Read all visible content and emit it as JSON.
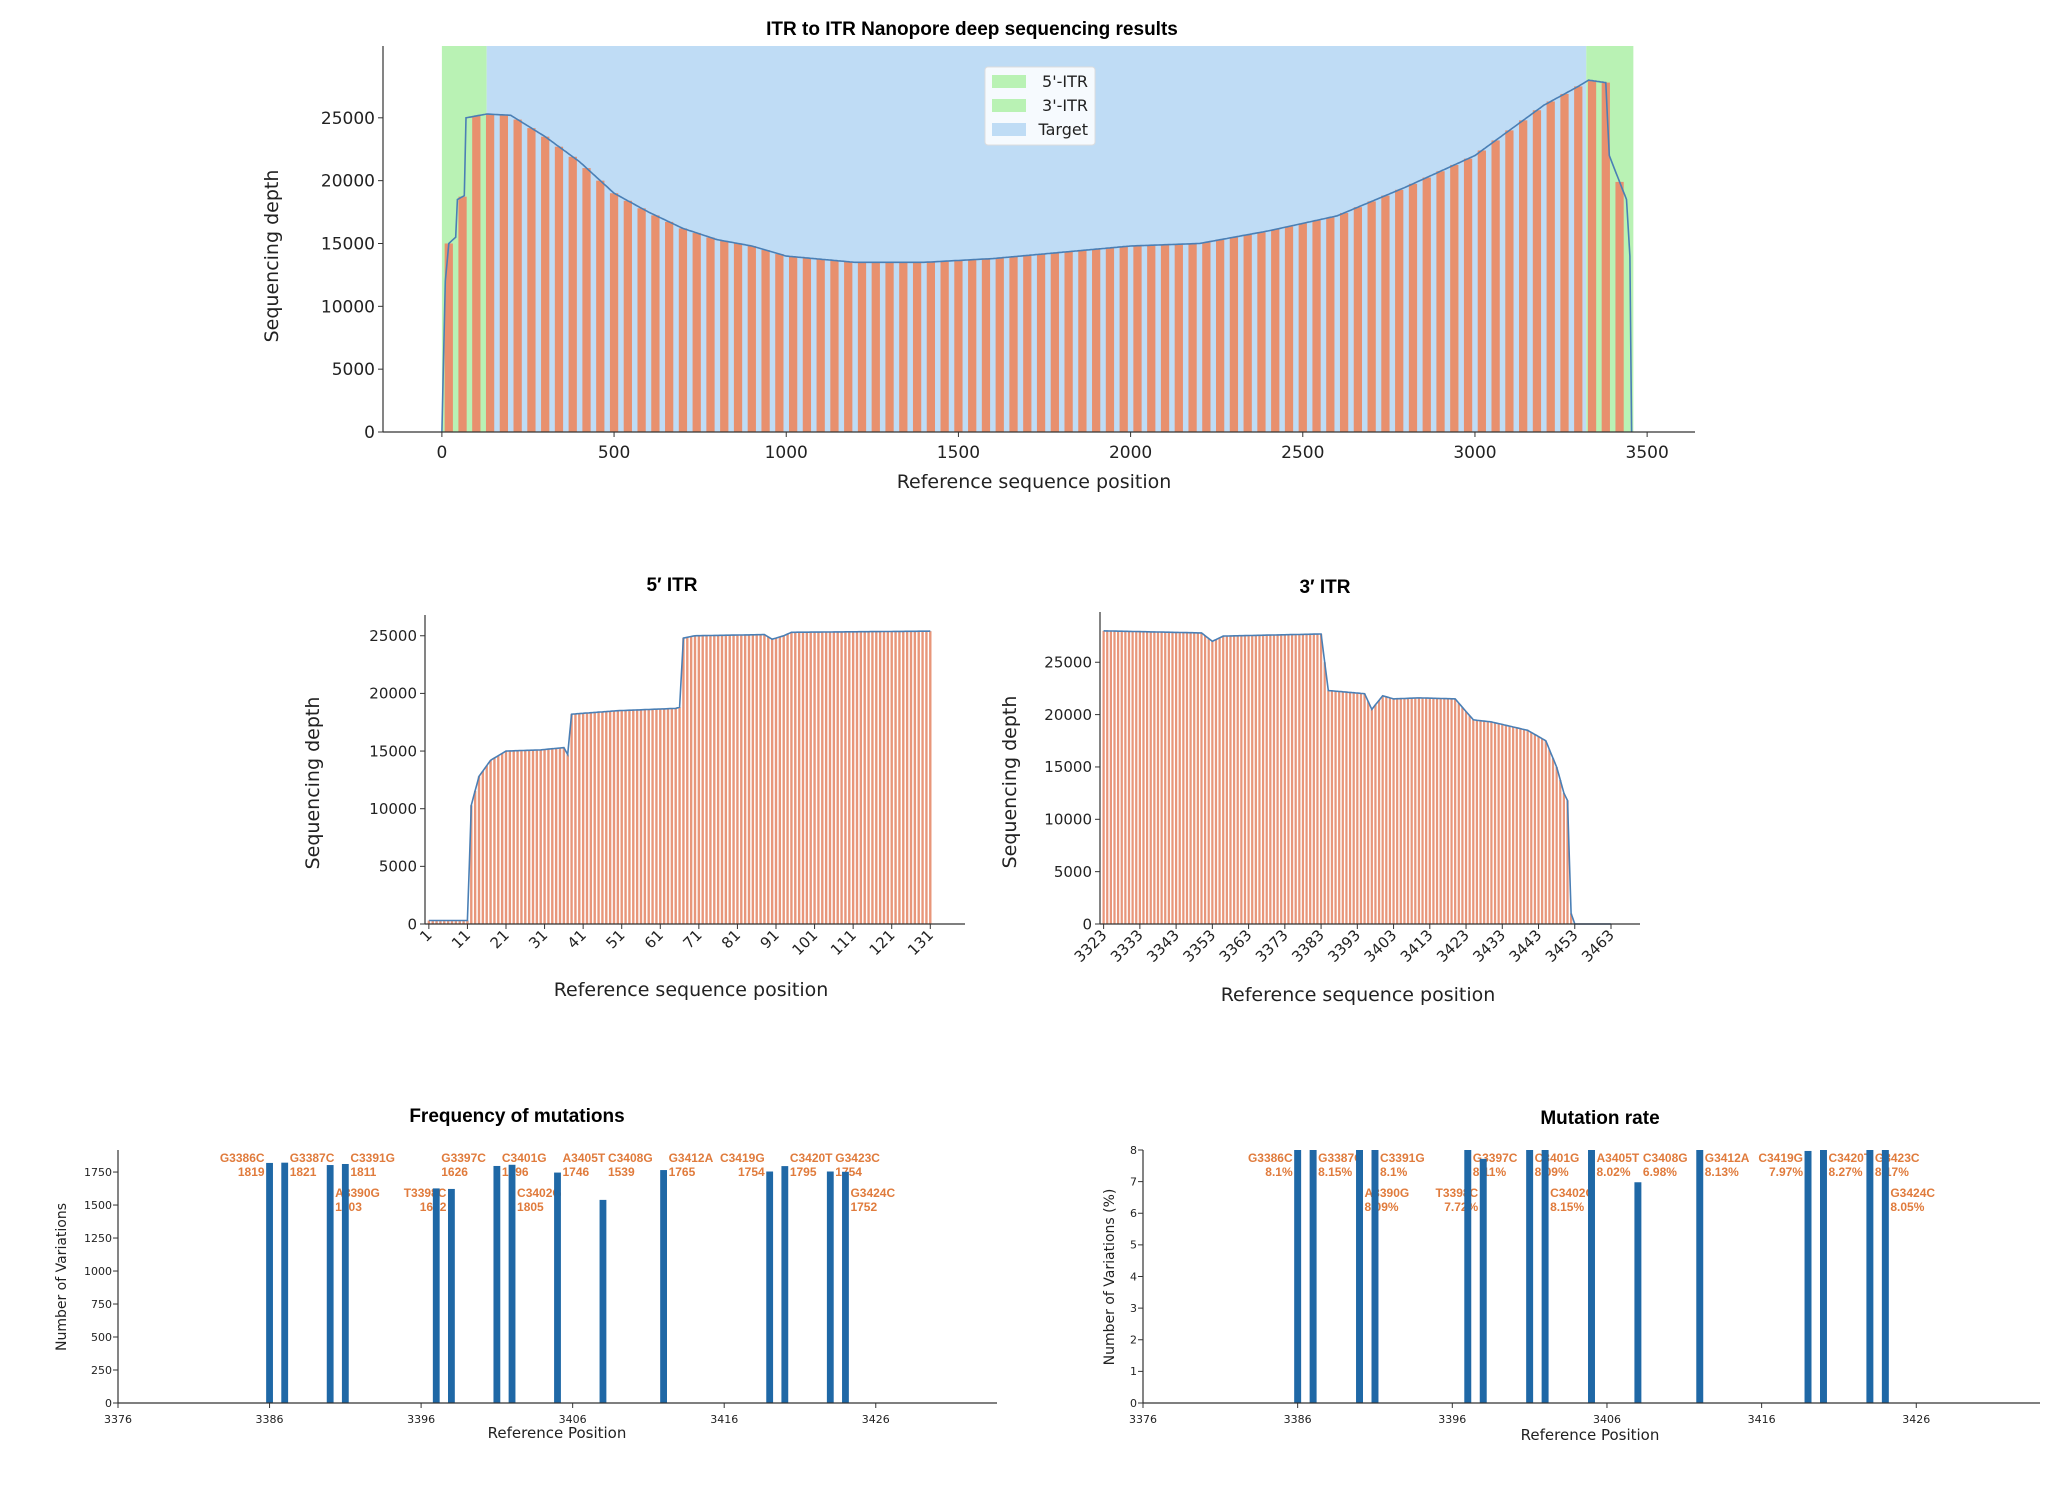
{
  "chart_data": [
    {
      "type": "bar",
      "title": "ITR to ITR Nanopore deep sequencing results",
      "xlabel": "Reference sequence position",
      "ylabel": "Sequencing depth",
      "xlim": [
        -171,
        3639
      ],
      "ylim": [
        0,
        29600
      ],
      "xticks": [
        0,
        500,
        1000,
        1500,
        2000,
        2500,
        3000,
        3500
      ],
      "yticks": [
        0,
        5000,
        10000,
        15000,
        20000,
        25000
      ],
      "grid": false,
      "legend_position": "top-center",
      "regions": [
        {
          "name": "5'-ITR",
          "start": 0,
          "end": 130,
          "color": "#b9f2b4"
        },
        {
          "name": "3'-ITR",
          "start": 3323,
          "end": 3460,
          "color": "#b9f2b4"
        },
        {
          "name": "Target",
          "start": 130,
          "end": 3323,
          "color": "#bfdcf5"
        }
      ],
      "bar_color": "#e8906e",
      "line_color": "#4a7fb5",
      "depth_profile": {
        "x": [
          0,
          10,
          20,
          40,
          45,
          65,
          70,
          130,
          200,
          300,
          400,
          500,
          600,
          700,
          800,
          900,
          1000,
          1200,
          1400,
          1600,
          1800,
          2000,
          2200,
          2400,
          2600,
          2800,
          3000,
          3200,
          3300,
          3330,
          3380,
          3390,
          3440,
          3450,
          3455
        ],
        "y": [
          0,
          12000,
          15000,
          15500,
          18500,
          18800,
          25000,
          25300,
          25200,
          23500,
          21500,
          19000,
          17500,
          16200,
          15300,
          14800,
          14000,
          13500,
          13500,
          13800,
          14300,
          14800,
          15000,
          16000,
          17200,
          19500,
          22000,
          26000,
          27500,
          28000,
          27800,
          22000,
          18500,
          14000,
          0
        ]
      }
    },
    {
      "type": "bar",
      "title": "5′ ITR",
      "xlabel": "Reference sequence position",
      "ylabel": "Sequencing depth",
      "xlim": [
        0,
        140
      ],
      "ylim": [
        0,
        26800
      ],
      "xticks": [
        1,
        11,
        21,
        31,
        41,
        51,
        61,
        71,
        81,
        91,
        101,
        111,
        121,
        131
      ],
      "yticks": [
        0,
        5000,
        10000,
        15000,
        20000,
        25000
      ],
      "bar_color": "#e8967a",
      "line_color": "#4a7fb5",
      "depth_profile": {
        "x": [
          1,
          11,
          12,
          14,
          17,
          21,
          30,
          36,
          37,
          38,
          50,
          65,
          66,
          67,
          70,
          88,
          90,
          93,
          95,
          131
        ],
        "y": [
          300,
          300,
          10300,
          12800,
          14200,
          15000,
          15100,
          15300,
          14700,
          18200,
          18500,
          18700,
          18800,
          24800,
          25000,
          25100,
          24700,
          25000,
          25300,
          25400
        ]
      }
    },
    {
      "type": "bar",
      "title": "3′ ITR",
      "xlabel": "Reference sequence position",
      "ylabel": "Sequencing depth",
      "xlim": [
        3322,
        3471
      ],
      "ylim": [
        0,
        29800
      ],
      "xticks": [
        3323,
        3333,
        3343,
        3353,
        3363,
        3373,
        3383,
        3393,
        3403,
        3413,
        3423,
        3433,
        3443,
        3453,
        3463
      ],
      "yticks": [
        0,
        5000,
        10000,
        15000,
        20000,
        25000
      ],
      "bar_color": "#e8967a",
      "line_color": "#4a7fb5",
      "depth_profile": {
        "x": [
          3323,
          3350,
          3353,
          3356,
          3383,
          3384,
          3385,
          3395,
          3397,
          3400,
          3403,
          3410,
          3420,
          3425,
          3430,
          3440,
          3445,
          3448,
          3450,
          3451,
          3452,
          3453,
          3463
        ],
        "y": [
          28000,
          27800,
          27000,
          27500,
          27700,
          25000,
          22300,
          22000,
          20500,
          21800,
          21500,
          21600,
          21500,
          19500,
          19300,
          18500,
          17500,
          15000,
          12500,
          11800,
          1000,
          0,
          0
        ]
      }
    },
    {
      "type": "bar",
      "title": "Frequency of mutations",
      "xlabel": "Reference Position",
      "ylabel": "Number of Variations",
      "xlim": [
        3376,
        3434
      ],
      "ylim": [
        0,
        1917
      ],
      "xticks": [
        3376,
        3386,
        3396,
        3406,
        3416,
        3426
      ],
      "yticks": [
        0,
        250,
        500,
        750,
        1000,
        1250,
        1500,
        1750
      ],
      "bar_color": "#1f68a6",
      "label_color": "#e07b3c",
      "mutations": [
        {
          "pos": 3386,
          "name": "G3386C",
          "value": 1819,
          "label": "1819"
        },
        {
          "pos": 3387,
          "name": "G3387C",
          "value": 1821,
          "label": "1821"
        },
        {
          "pos": 3390,
          "name": "A3390G",
          "value": 1803,
          "label": "1803"
        },
        {
          "pos": 3391,
          "name": "C3391G",
          "value": 1811,
          "label": "1811"
        },
        {
          "pos": 3397,
          "name": "G3397C",
          "value": 1626,
          "label": "1626"
        },
        {
          "pos": 3398,
          "name": "T3398C",
          "value": 1622,
          "label": "1622"
        },
        {
          "pos": 3401,
          "name": "C3401G",
          "value": 1796,
          "label": "1796"
        },
        {
          "pos": 3402,
          "name": "C3402G",
          "value": 1805,
          "label": "1805"
        },
        {
          "pos": 3405,
          "name": "A3405T",
          "value": 1746,
          "label": "1746"
        },
        {
          "pos": 3408,
          "name": "C3408G",
          "value": 1539,
          "label": "1539"
        },
        {
          "pos": 3412,
          "name": "G3412A",
          "value": 1765,
          "label": "1765"
        },
        {
          "pos": 3419,
          "name": "C3419G",
          "value": 1754,
          "label": "1754"
        },
        {
          "pos": 3420,
          "name": "C3420T",
          "value": 1795,
          "label": "1795"
        },
        {
          "pos": 3423,
          "name": "G3423C",
          "value": 1754,
          "label": "1754"
        },
        {
          "pos": 3424,
          "name": "G3424C",
          "value": 1752,
          "label": "1752"
        }
      ]
    },
    {
      "type": "bar",
      "title": "Mutation rate",
      "xlabel": "Reference Position",
      "ylabel": "Number of Variations (%)",
      "xlim": [
        3376,
        3434
      ],
      "ylim": [
        0,
        8.0
      ],
      "xticks": [
        3376,
        3386,
        3396,
        3406,
        3416,
        3426
      ],
      "yticks": [
        0,
        1,
        2,
        3,
        4,
        5,
        6,
        7,
        8
      ],
      "bar_color": "#1f68a6",
      "label_color": "#e07b3c",
      "mutations": [
        {
          "pos": 3386,
          "name": "G3386C",
          "value": 8.1,
          "label": "8.1%"
        },
        {
          "pos": 3387,
          "name": "G3387C",
          "value": 8.15,
          "label": "8.15%"
        },
        {
          "pos": 3390,
          "name": "A3390G",
          "value": 8.09,
          "label": "8.09%"
        },
        {
          "pos": 3391,
          "name": "C3391G",
          "value": 8.1,
          "label": "8.1%"
        },
        {
          "pos": 3397,
          "name": "G3397C",
          "value": 8.11,
          "label": "8.11%"
        },
        {
          "pos": 3398,
          "name": "T3398C",
          "value": 7.72,
          "label": "7.72%"
        },
        {
          "pos": 3401,
          "name": "C3401G",
          "value": 8.09,
          "label": "8.09%"
        },
        {
          "pos": 3402,
          "name": "C3402G",
          "value": 8.15,
          "label": "8.15%"
        },
        {
          "pos": 3405,
          "name": "A3405T",
          "value": 8.02,
          "label": "8.02%"
        },
        {
          "pos": 3408,
          "name": "C3408G",
          "value": 6.98,
          "label": "6.98%"
        },
        {
          "pos": 3412,
          "name": "G3412A",
          "value": 8.13,
          "label": "8.13%"
        },
        {
          "pos": 3419,
          "name": "C3419G",
          "value": 7.97,
          "label": "7.97%"
        },
        {
          "pos": 3420,
          "name": "C3420T",
          "value": 8.27,
          "label": "8.27%"
        },
        {
          "pos": 3423,
          "name": "G3423C",
          "value": 8.17,
          "label": "8.17%"
        },
        {
          "pos": 3424,
          "name": "G3424C",
          "value": 8.05,
          "label": "8.05%"
        }
      ]
    }
  ]
}
